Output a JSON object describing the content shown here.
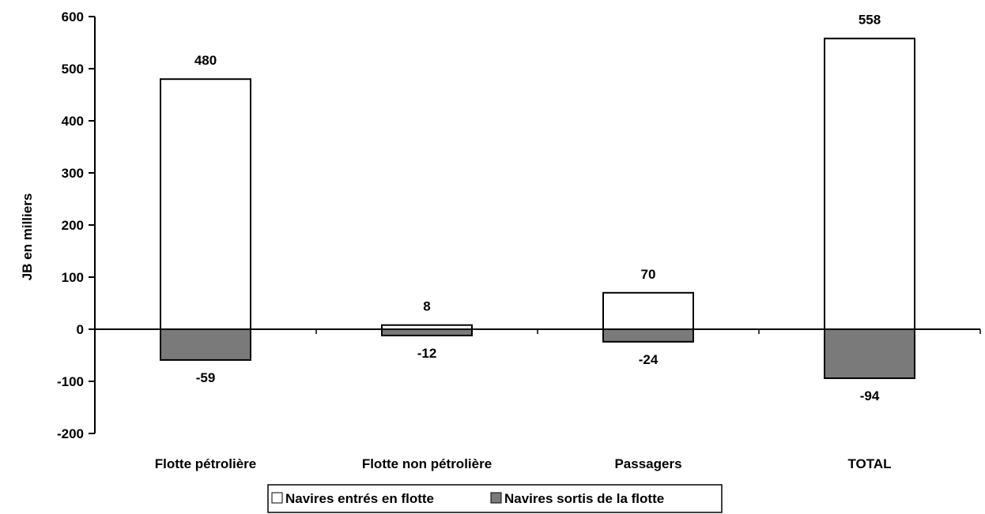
{
  "chart_data": {
    "type": "bar",
    "categories": [
      "Flotte pétrolière",
      "Flotte non pétrolière",
      "Passagers",
      "TOTAL"
    ],
    "series": [
      {
        "name": "Navires entrés en flotte",
        "values": [
          480,
          8,
          70,
          558
        ],
        "color": "#ffffff"
      },
      {
        "name": "Navires sortis de la flotte",
        "values": [
          -59,
          -12,
          -24,
          -94
        ],
        "color": "#7a7a7a"
      }
    ],
    "data_labels": {
      "positive": [
        "480",
        "8",
        "70",
        "558"
      ],
      "negative": [
        "-59",
        "-12",
        "-24",
        "-94"
      ]
    },
    "title": "",
    "xlabel": "",
    "ylabel": "JB en milliers",
    "ylim": [
      -200,
      600
    ],
    "yticks": [
      -200,
      -100,
      0,
      100,
      200,
      300,
      400,
      500,
      600
    ],
    "ytick_labels": [
      "-200",
      "-100",
      "0",
      "100",
      "200",
      "300",
      "400",
      "500",
      "600"
    ],
    "grid": false,
    "legend_position": "bottom",
    "stacked": true
  }
}
